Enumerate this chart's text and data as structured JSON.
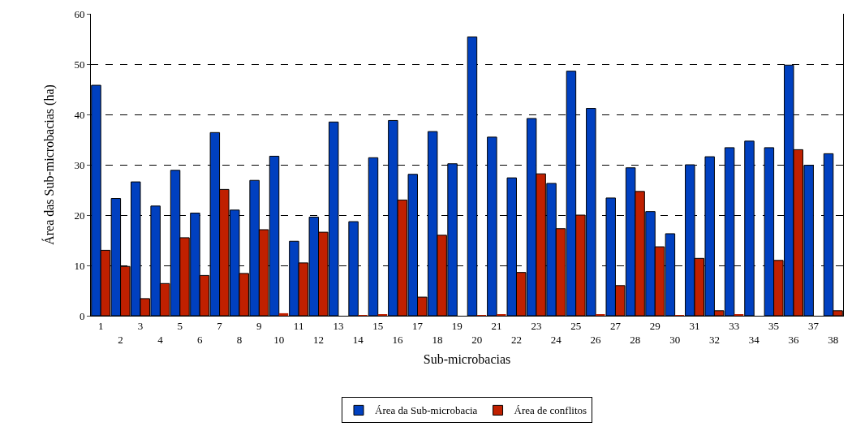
{
  "chart_data": {
    "type": "bar",
    "xlabel": "Sub-microbacias",
    "ylabel": "Área das Sub-microbacias (ha)",
    "categories": [
      "1",
      "2",
      "3",
      "4",
      "5",
      "6",
      "7",
      "8",
      "9",
      "10",
      "11",
      "12",
      "13",
      "14",
      "15",
      "16",
      "17",
      "18",
      "19",
      "20",
      "21",
      "22",
      "23",
      "24",
      "25",
      "26",
      "27",
      "28",
      "29",
      "30",
      "31",
      "32",
      "33",
      "34",
      "35",
      "36",
      "37",
      "38"
    ],
    "series": [
      {
        "name": "Área da Sub-microbacia",
        "color": "#0040c0",
        "values": [
          45.8,
          23.3,
          26.6,
          21.8,
          28.9,
          20.4,
          36.4,
          21.0,
          26.9,
          31.7,
          14.8,
          19.6,
          38.5,
          18.7,
          31.4,
          38.8,
          28.1,
          36.6,
          30.2,
          55.4,
          35.5,
          27.4,
          39.2,
          26.3,
          48.6,
          41.2,
          23.4,
          29.4,
          20.7,
          16.3,
          30.0,
          31.6,
          33.4,
          34.7,
          33.4,
          49.8,
          29.9,
          32.2
        ]
      },
      {
        "name": "Área de conflitos",
        "color": "#c02000",
        "values": [
          13.0,
          9.8,
          3.4,
          6.4,
          15.5,
          8.0,
          25.1,
          8.4,
          17.1,
          0.5,
          10.5,
          16.6,
          0,
          0.1,
          0.3,
          23.0,
          3.7,
          16.0,
          0,
          0.1,
          0.2,
          8.6,
          28.2,
          17.3,
          20.0,
          0.2,
          6.0,
          24.7,
          13.7,
          0.1,
          11.4,
          1.0,
          0.3,
          0,
          11.0,
          33.0,
          0,
          1.0
        ]
      }
    ],
    "ylim": [
      0,
      60
    ],
    "yticks": [
      0,
      10,
      20,
      30,
      40,
      50,
      60
    ],
    "grid": "y",
    "legend": "bottom"
  }
}
